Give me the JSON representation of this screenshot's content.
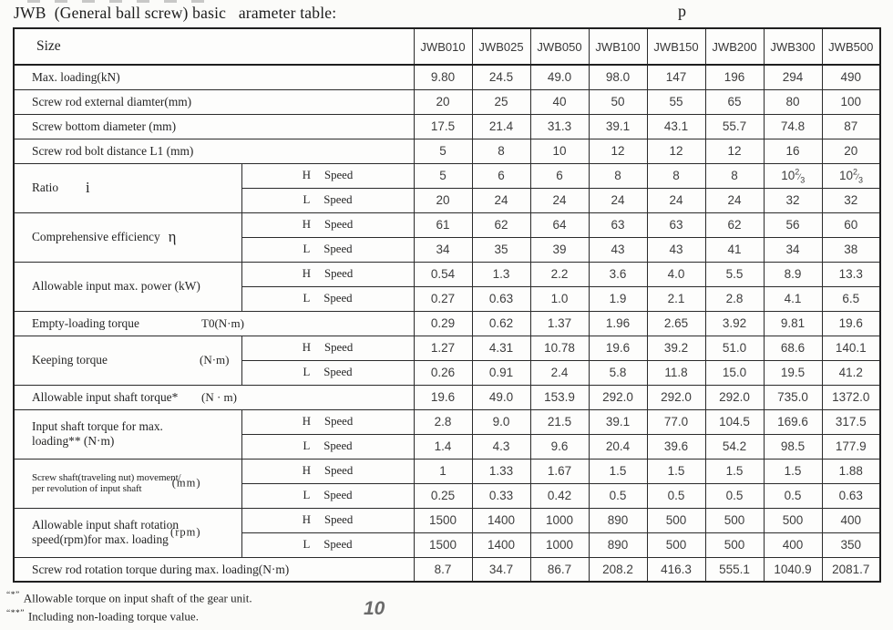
{
  "page": {
    "title": "JWB  (General ball screw) basic   arameter table:",
    "stray_char": "p",
    "page_number": "10",
    "footnotes": [
      {
        "mark": "“*”",
        "text": "Allowable torque on input shaft of the gear unit."
      },
      {
        "mark": "“**”",
        "text": "Including non-loading torque value."
      }
    ],
    "ink_colors": {
      "border": "#1f1f1f",
      "label_text": "#242424",
      "number_text": "#3d3d3d",
      "page_number": "#6a6a6a"
    }
  },
  "table": {
    "size_header": "Size",
    "columns": [
      "JWB010",
      "JWB025",
      "JWB050",
      "JWB100",
      "JWB150",
      "JWB200",
      "JWB300",
      "JWB500"
    ],
    "speed_labels": {
      "h": "H",
      "l": "L",
      "word": "Speed"
    },
    "rows": [
      {
        "kind": "single",
        "label": "Max. loading(kN)",
        "values": [
          "9.80",
          "24.5",
          "49.0",
          "98.0",
          "147",
          "196",
          "294",
          "490"
        ]
      },
      {
        "kind": "single",
        "label": "Screw rod external diamter(mm)",
        "values": [
          "20",
          "25",
          "40",
          "50",
          "55",
          "65",
          "80",
          "100"
        ]
      },
      {
        "kind": "single",
        "label": "Screw bottom diameter (mm)",
        "values": [
          "17.5",
          "21.4",
          "31.3",
          "39.1",
          "43.1",
          "55.7",
          "74.8",
          "87"
        ]
      },
      {
        "kind": "single",
        "label": "Screw rod bolt distance L1 (mm)",
        "values": [
          "5",
          "8",
          "10",
          "12",
          "12",
          "12",
          "16",
          "20"
        ]
      },
      {
        "kind": "dual",
        "label": "Ratio",
        "symbol": "i",
        "wide_gap": true,
        "h": [
          "5",
          "6",
          "6",
          "8",
          "8",
          "8",
          "10⅔",
          "10⅔"
        ],
        "l": [
          "20",
          "24",
          "24",
          "24",
          "24",
          "24",
          "32",
          "32"
        ]
      },
      {
        "kind": "dual",
        "label": "Comprehensive efficiency",
        "symbol": "η",
        "h": [
          "61",
          "62",
          "64",
          "63",
          "63",
          "62",
          "56",
          "60"
        ],
        "l": [
          "34",
          "35",
          "39",
          "43",
          "43",
          "41",
          "34",
          "38"
        ]
      },
      {
        "kind": "dual",
        "label": "Allowable input max. power (kW)",
        "h": [
          "0.54",
          "1.3",
          "2.2",
          "3.6",
          "4.0",
          "5.5",
          "8.9",
          "13.3"
        ],
        "l": [
          "0.27",
          "0.63",
          "1.0",
          "1.9",
          "2.1",
          "2.8",
          "4.1",
          "6.5"
        ]
      },
      {
        "kind": "single",
        "label": "Empty-loading torque",
        "unit": "T0(N·m)",
        "values": [
          "0.29",
          "0.62",
          "1.37",
          "1.96",
          "2.65",
          "3.92",
          "9.81",
          "19.6"
        ]
      },
      {
        "kind": "dual",
        "label": "Keeping torque",
        "unit": "(N·m)",
        "unit_pos": "right",
        "h": [
          "1.27",
          "4.31",
          "10.78",
          "19.6",
          "39.2",
          "51.0",
          "68.6",
          "140.1"
        ],
        "l": [
          "0.26",
          "0.91",
          "2.4",
          "5.8",
          "11.8",
          "15.0",
          "19.5",
          "41.2"
        ]
      },
      {
        "kind": "single",
        "label": "Allowable input shaft torque*",
        "unit": "(N · m)",
        "values": [
          "19.6",
          "49.0",
          "153.9",
          "292.0",
          "292.0",
          "292.0",
          "735.0",
          "1372.0"
        ]
      },
      {
        "kind": "dual",
        "label": "Input shaft torque for max.\nloading**  (N·m)",
        "h": [
          "2.8",
          "9.0",
          "21.5",
          "39.1",
          "77.0",
          "104.5",
          "169.6",
          "317.5"
        ],
        "l": [
          "1.4",
          "4.3",
          "9.6",
          "20.4",
          "39.6",
          "54.2",
          "98.5",
          "177.9"
        ]
      },
      {
        "kind": "dual",
        "label": "Screw shaft(traveling nut) movement/\nper revolution of input shaft",
        "unit": "(mm)",
        "unit_pos": "far",
        "small": true,
        "h": [
          "1",
          "1.33",
          "1.67",
          "1.5",
          "1.5",
          "1.5",
          "1.5",
          "1.88"
        ],
        "l": [
          "0.25",
          "0.33",
          "0.42",
          "0.5",
          "0.5",
          "0.5",
          "0.5",
          "0.63"
        ]
      },
      {
        "kind": "dual",
        "label": "Allowable input shaft rotation\nspeed(rpm)for max. loading",
        "unit": "(rpm)",
        "unit_pos": "far",
        "h": [
          "1500",
          "1400",
          "1000",
          "890",
          "500",
          "500",
          "500",
          "400"
        ],
        "l": [
          "1500",
          "1400",
          "1000",
          "890",
          "500",
          "500",
          "400",
          "350"
        ]
      },
      {
        "kind": "single",
        "label": "Screw rod rotation torque during max. loading(N·m)",
        "values": [
          "8.7",
          "34.7",
          "86.7",
          "208.2",
          "416.3",
          "555.1",
          "1040.9",
          "2081.7"
        ]
      }
    ]
  }
}
